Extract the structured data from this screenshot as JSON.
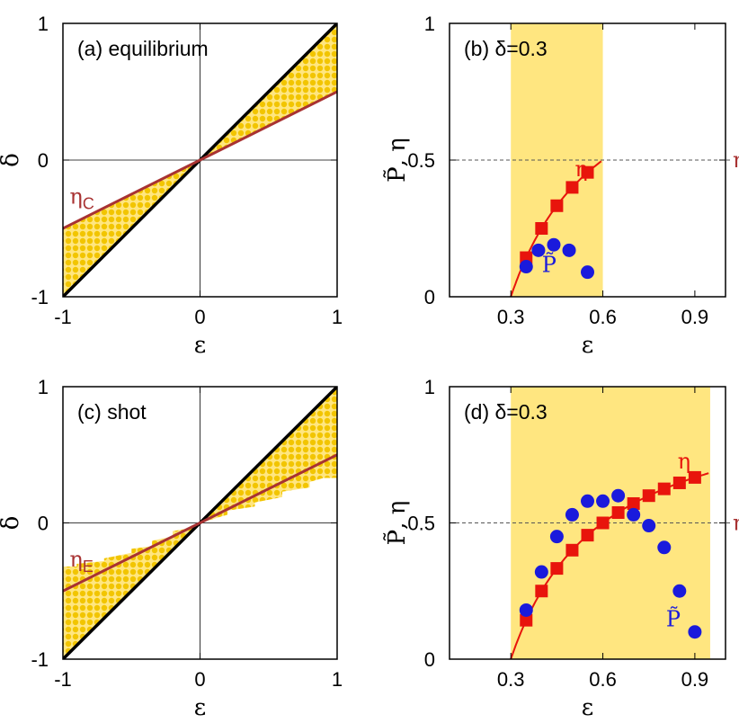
{
  "colors": {
    "region": "#ffe680",
    "dots": "#f2c500",
    "brown_line": "#a83232",
    "eta_red": "#e8140c",
    "ptilde_blue": "#1a1adc",
    "boundary": "#000000"
  },
  "chart_data": [
    {
      "id": "a",
      "type": "area",
      "title": "(a) equilibrium",
      "xlabel": "ε",
      "ylabel": "δ",
      "xlim": [
        -1,
        1
      ],
      "ylim": [
        -1,
        1
      ],
      "xticks": [
        "-1",
        "0",
        "1"
      ],
      "yticks": [
        "-1",
        "0",
        "1"
      ],
      "zero_lines": true,
      "lines": [
        {
          "label": "",
          "x": [
            -1,
            1
          ],
          "y": [
            -1,
            1
          ],
          "color": "#000000"
        },
        {
          "label": "ηC",
          "x": [
            -1,
            1
          ],
          "y": [
            -0.5,
            0.5
          ],
          "color": "#a83232"
        }
      ],
      "line_label": {
        "text": "η",
        "sub": "C",
        "x": -0.99,
        "y": -0.28
      },
      "region": "between δ=ε/2 and δ=ε"
    },
    {
      "id": "b",
      "type": "scatter",
      "title": "(b) δ=0.3",
      "xlabel": "ε",
      "ylabel": "P̃, η",
      "xlim": [
        0.1,
        1.0
      ],
      "ylim": [
        0,
        1
      ],
      "xticks": [
        "0.3",
        "0.6",
        "0.9"
      ],
      "yticks": [
        "0",
        "0.5",
        "1"
      ],
      "band": [
        0.3,
        0.6
      ],
      "hline": {
        "y": 0.5,
        "style": "dashed",
        "label": "η",
        "sub": "C"
      },
      "eta_curve": {
        "x": [
          0.3,
          0.33,
          0.36,
          0.4,
          0.45,
          0.5,
          0.55,
          0.6
        ],
        "y": [
          0,
          0.0909,
          0.1667,
          0.25,
          0.3333,
          0.4,
          0.4545,
          0.5
        ]
      },
      "series": [
        {
          "name": "η",
          "x": [
            0.35,
            0.4,
            0.45,
            0.5,
            0.55
          ],
          "y": [
            0.143,
            0.25,
            0.333,
            0.4,
            0.455
          ]
        },
        {
          "name": "P̃",
          "x": [
            0.35,
            0.39,
            0.44,
            0.49,
            0.55
          ],
          "y": [
            0.11,
            0.17,
            0.19,
            0.17,
            0.09
          ]
        }
      ],
      "series_labels": [
        {
          "text": "η",
          "x": 0.53,
          "y": 0.44,
          "color": "#e8140c"
        },
        {
          "text": "P̃",
          "x": 0.425,
          "y": 0.09,
          "color": "#1a1adc"
        }
      ]
    },
    {
      "id": "c",
      "type": "area",
      "title": "(c) shot",
      "xlabel": "ε",
      "ylabel": "δ",
      "xlim": [
        -1,
        1
      ],
      "ylim": [
        -1,
        1
      ],
      "xticks": [
        "-1",
        "0",
        "1"
      ],
      "yticks": [
        "-1",
        "0",
        "1"
      ],
      "zero_lines": true,
      "lines": [
        {
          "label": "",
          "x": [
            -1,
            1
          ],
          "y": [
            -1,
            1
          ],
          "color": "#000000"
        },
        {
          "label": "ηE",
          "x": [
            -1,
            1
          ],
          "y": [
            -0.5,
            0.5
          ],
          "color": "#a83232"
        }
      ],
      "line_label": {
        "text": "η",
        "sub": "E",
        "x": -0.99,
        "y": -0.28
      },
      "region": "between δ=ε and stepped upper boundary (shot noise)"
    },
    {
      "id": "d",
      "type": "scatter",
      "title": "(d) δ=0.3",
      "xlabel": "ε",
      "ylabel": "P̃, η",
      "xlim": [
        0.1,
        1.0
      ],
      "ylim": [
        0,
        1
      ],
      "xticks": [
        "0.3",
        "0.6",
        "0.9"
      ],
      "yticks": [
        "0",
        "0.5",
        "1"
      ],
      "band": [
        0.3,
        0.95
      ],
      "hline": {
        "y": 0.5,
        "style": "dashed",
        "label": "η",
        "sub": "E"
      },
      "eta_curve": {
        "x": [
          0.3,
          0.33,
          0.36,
          0.4,
          0.45,
          0.5,
          0.55,
          0.6,
          0.65,
          0.7,
          0.75,
          0.8,
          0.85,
          0.9,
          0.94
        ],
        "y": [
          0,
          0.0909,
          0.1667,
          0.25,
          0.3333,
          0.4,
          0.4545,
          0.5,
          0.5385,
          0.5714,
          0.6,
          0.625,
          0.6471,
          0.6667,
          0.6809
        ]
      },
      "series": [
        {
          "name": "η",
          "x": [
            0.35,
            0.4,
            0.45,
            0.5,
            0.55,
            0.6,
            0.65,
            0.7,
            0.75,
            0.8,
            0.85,
            0.9
          ],
          "y": [
            0.143,
            0.25,
            0.333,
            0.4,
            0.455,
            0.5,
            0.538,
            0.571,
            0.6,
            0.625,
            0.647,
            0.667
          ]
        },
        {
          "name": "P̃",
          "x": [
            0.35,
            0.4,
            0.45,
            0.5,
            0.55,
            0.6,
            0.65,
            0.7,
            0.75,
            0.8,
            0.85,
            0.9
          ],
          "y": [
            0.18,
            0.32,
            0.45,
            0.53,
            0.58,
            0.58,
            0.6,
            0.53,
            0.49,
            0.41,
            0.25,
            0.1
          ]
        }
      ],
      "series_labels": [
        {
          "text": "η",
          "x": 0.865,
          "y": 0.7,
          "color": "#e8140c"
        },
        {
          "text": "P̃",
          "x": 0.83,
          "y": 0.12,
          "color": "#1a1adc"
        }
      ]
    }
  ]
}
